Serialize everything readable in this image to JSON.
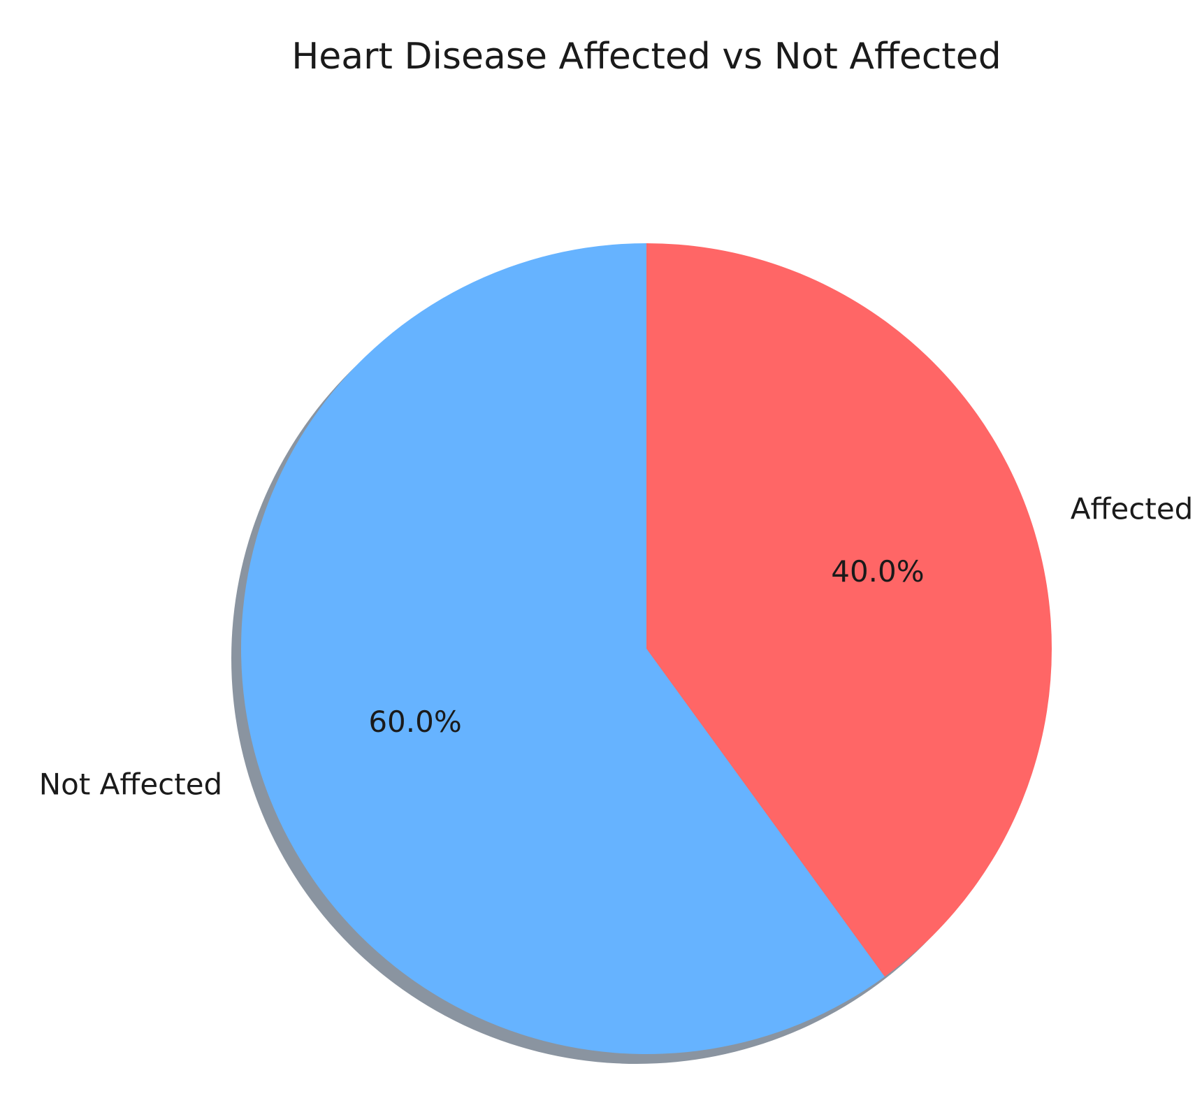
{
  "chart_data": {
    "type": "pie",
    "title": "Heart Disease Affected vs Not Affected",
    "slices": [
      {
        "label": "Affected",
        "value": 40.0,
        "pct_label": "40.0%",
        "color": "#ff6666"
      },
      {
        "label": "Not Affected",
        "value": 60.0,
        "pct_label": "60.0%",
        "color": "#66b3ff"
      }
    ],
    "start_angle_deg": 90,
    "direction": "clockwise",
    "shadow": true
  }
}
